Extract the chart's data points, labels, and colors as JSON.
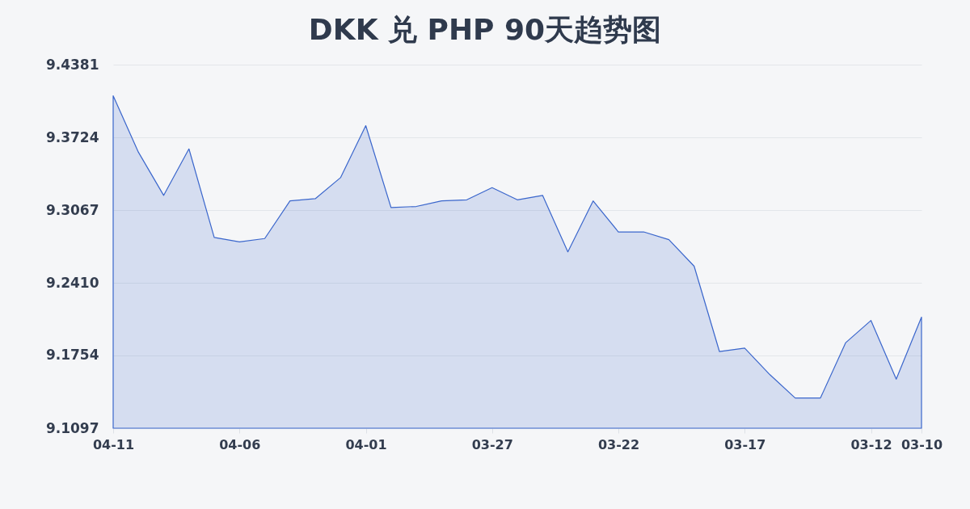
{
  "chart_data": {
    "type": "area",
    "title": "DKK 兑 PHP 90天趋势图",
    "categories": [
      "04-11",
      null,
      null,
      null,
      null,
      "04-06",
      null,
      null,
      null,
      null,
      "04-01",
      null,
      null,
      null,
      null,
      "03-27",
      null,
      null,
      null,
      null,
      "03-22",
      null,
      null,
      null,
      null,
      "03-17",
      null,
      null,
      null,
      null,
      "03-12",
      null,
      "03-10"
    ],
    "values": [
      9.41,
      9.359,
      9.32,
      9.362,
      9.282,
      9.278,
      9.281,
      9.315,
      9.317,
      9.336,
      9.383,
      9.309,
      9.31,
      9.315,
      9.316,
      9.327,
      9.316,
      9.32,
      9.269,
      9.315,
      9.287,
      9.287,
      9.28,
      9.256,
      9.179,
      9.182,
      9.158,
      9.137,
      9.137,
      9.187,
      9.207,
      9.154,
      9.21
    ],
    "color": "#3a66cc",
    "ylim": [
      9.1097,
      9.4381
    ],
    "yticks": [
      9.1097,
      9.1754,
      {
        "value": 9.241,
        "label": "9.2410"
      },
      9.3067,
      9.3724,
      9.4381
    ],
    "grid": "y"
  }
}
